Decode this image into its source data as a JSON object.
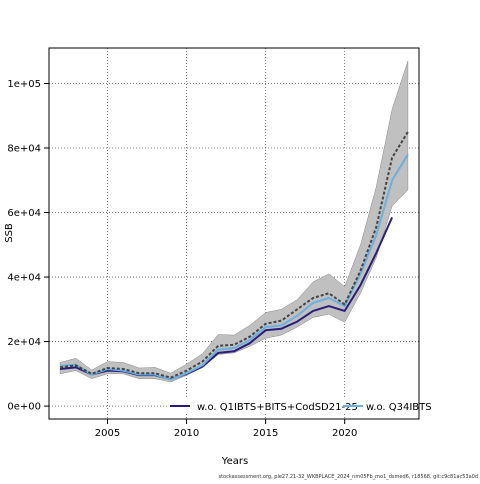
{
  "chart_data": {
    "type": "line",
    "xlabel": "Years",
    "ylabel": "SSB",
    "xlim": [
      2001.3,
      2024.7
    ],
    "ylim": [
      -4000,
      111000
    ],
    "xticks": [
      2005,
      2010,
      2015,
      2020
    ],
    "yticks": [
      0,
      20000,
      40000,
      60000,
      80000,
      100000
    ],
    "ytick_labels": [
      "0e+00",
      "2e+04",
      "4e+04",
      "6e+04",
      "8e+04",
      "1e+05"
    ],
    "grid": true,
    "grid_style": "dotted",
    "legend_placement": "bottom",
    "confidence_band": {
      "x": [
        2002,
        2003,
        2004,
        2005,
        2006,
        2007,
        2008,
        2009,
        2010,
        2011,
        2012,
        2013,
        2014,
        2015,
        2016,
        2017,
        2018,
        2019,
        2020,
        2021,
        2022,
        2023,
        2024
      ],
      "lower": [
        10000,
        11000,
        8500,
        10000,
        10000,
        8500,
        8500,
        7500,
        9500,
        12000,
        16000,
        16500,
        18500,
        21000,
        22000,
        24500,
        27500,
        28500,
        26000,
        35000,
        46000,
        62000,
        67000
      ],
      "upper": [
        13500,
        14800,
        11200,
        13800,
        13500,
        11800,
        12000,
        10200,
        13000,
        16200,
        22200,
        22000,
        25000,
        29000,
        30000,
        33000,
        38500,
        41000,
        37000,
        50000,
        68000,
        92000,
        107000
      ]
    },
    "series": [
      {
        "name": "w.o. Q1IBTS+BITS+CodSD21-25",
        "color": "#2b1c7a",
        "style": "solid",
        "x": [
          2002,
          2003,
          2004,
          2005,
          2006,
          2007,
          2008,
          2009,
          2010,
          2011,
          2012,
          2013,
          2014,
          2015,
          2016,
          2017,
          2018,
          2019,
          2020,
          2021,
          2022,
          2023
        ],
        "values": [
          11500,
          12000,
          9800,
          11000,
          10800,
          9600,
          9600,
          8300,
          10000,
          12200,
          16500,
          17000,
          19500,
          23500,
          24000,
          26200,
          29500,
          31000,
          29500,
          37500,
          47500,
          58500
        ]
      },
      {
        "name": "w.o. Q34IBTS",
        "color": "#6ab0e0",
        "style": "solid",
        "x": [
          2002,
          2003,
          2004,
          2005,
          2006,
          2007,
          2008,
          2009,
          2010,
          2011,
          2012,
          2013,
          2014,
          2015,
          2016,
          2017,
          2018,
          2019,
          2020,
          2021,
          2022,
          2023,
          2024
        ],
        "values": [
          12500,
          12800,
          9800,
          11500,
          11000,
          9800,
          9800,
          8200,
          10200,
          12600,
          17500,
          18000,
          20500,
          24500,
          25000,
          28000,
          32000,
          33500,
          31000,
          41000,
          53000,
          70000,
          78000
        ]
      },
      {
        "name": "",
        "color": "#444444",
        "style": "dashed",
        "x": [
          2002,
          2003,
          2004,
          2005,
          2006,
          2007,
          2008,
          2009,
          2010,
          2011,
          2012,
          2013,
          2014,
          2015,
          2016,
          2017,
          2018,
          2019,
          2020,
          2021,
          2022,
          2023,
          2024
        ],
        "values": [
          12000,
          12600,
          10000,
          11800,
          11500,
          10200,
          10200,
          8800,
          11000,
          13800,
          18700,
          19000,
          21500,
          25500,
          26500,
          30000,
          33500,
          35000,
          31500,
          42000,
          55500,
          77000,
          85000
        ]
      }
    ],
    "legend": [
      "w.o. Q1IBTS+BITS+CodSD21-25",
      "w.o. Q34IBTS"
    ]
  },
  "source_text": "stockassessment.org, ple27.21-32_WKBPLACE_2024_nm05Fb_mo1_dsmed6, r18568, git:c9c81ac53a0d"
}
